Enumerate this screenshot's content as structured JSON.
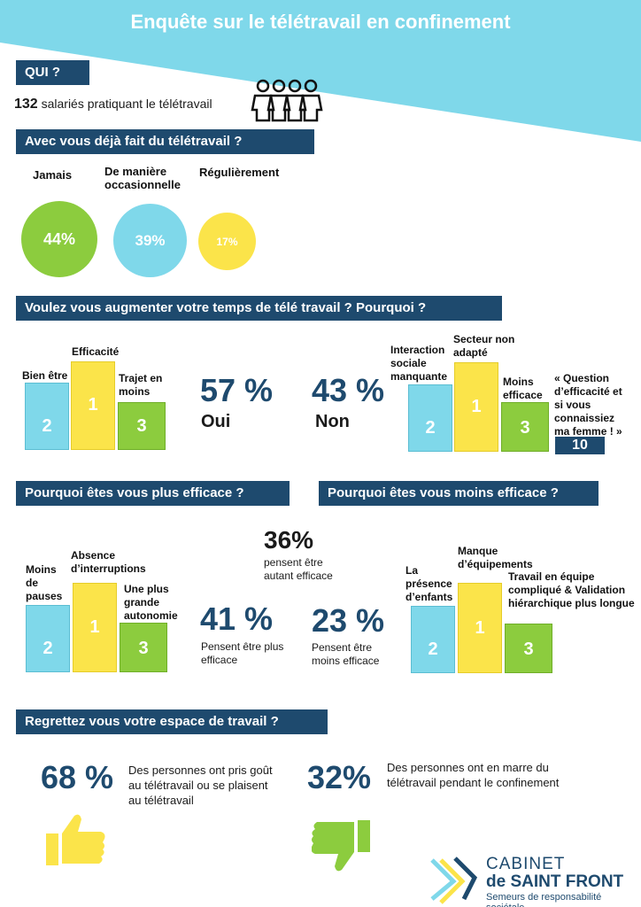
{
  "title": "Enquête sur le télétravail en confinement",
  "colors": {
    "blue_band": "#7fd8ea",
    "header": "#1e4a6e",
    "yellow": "#fbe44a",
    "green": "#8ccc3e",
    "light_blue": "#7fd8ea"
  },
  "qui": {
    "header": "QUI ?",
    "count": "132",
    "text": "salariés pratiquant le télétravail",
    "icon": "people-group-icon"
  },
  "deja": {
    "header": "Avec vous déjà fait du télétravail ?",
    "items": [
      {
        "label": "Jamais",
        "value": "44%"
      },
      {
        "label": "De manière occasionnelle",
        "value": "39%"
      },
      {
        "label": "Régulièrement",
        "value": "17%"
      }
    ]
  },
  "augmenter": {
    "header": "Voulez vous augmenter votre temps de télé travail ? Pourquoi ?",
    "oui": {
      "value": "57 %",
      "label": "Oui",
      "bars": [
        {
          "label": "Bien être",
          "rank": "2"
        },
        {
          "label": "Efficacité",
          "rank": "1"
        },
        {
          "label": "Trajet en moins",
          "rank": "3"
        }
      ]
    },
    "non": {
      "value": "43 %",
      "label": "Non",
      "bars": [
        {
          "label": "Interaction sociale manquante",
          "rank": "2"
        },
        {
          "label": "Secteur non adapté",
          "rank": "1"
        },
        {
          "label": "Moins efficace",
          "rank": "3"
        }
      ],
      "quote": "« Question d’efficacité et si vous connaissiez ma femme ! »",
      "quote_rank": "10"
    }
  },
  "efficace": {
    "plus_header": "Pourquoi êtes vous plus efficace ?",
    "moins_header": "Pourquoi êtes vous moins efficace ?",
    "plus_bars": [
      {
        "label": "Moins de pauses",
        "rank": "2"
      },
      {
        "label": "Absence d’interruptions",
        "rank": "1"
      },
      {
        "label": "Une plus grande autonomie",
        "rank": "3"
      }
    ],
    "moins_bars": [
      {
        "label": "La présence d’enfants",
        "rank": "2"
      },
      {
        "label": "Manque d’équipements",
        "rank": "1"
      },
      {
        "label": "Travail en équipe compliqué & Validation hiérarchique plus longue",
        "rank": "3"
      }
    ],
    "autant": {
      "value": "36%",
      "text": "pensent être autant efficace"
    },
    "plus": {
      "value": "41 %",
      "text": "Pensent être plus efficace"
    },
    "moins": {
      "value": "23 %",
      "text": "Pensent être moins efficace"
    }
  },
  "regret": {
    "header": "Regrettez vous votre espace de travail ?",
    "pos": {
      "value": "68 %",
      "text": "Des personnes ont pris goût au télétravail ou se plaisent au télétravail",
      "icon": "thumbs-up-icon"
    },
    "neg": {
      "value": "32%",
      "text": "Des personnes  ont en marre du télétravail pendant le confinement",
      "icon": "thumbs-down-icon"
    }
  },
  "logo": {
    "line1": "CABINET",
    "line2": "de SAINT FRONT",
    "tagline": "Semeurs de responsabilité sociétale"
  }
}
